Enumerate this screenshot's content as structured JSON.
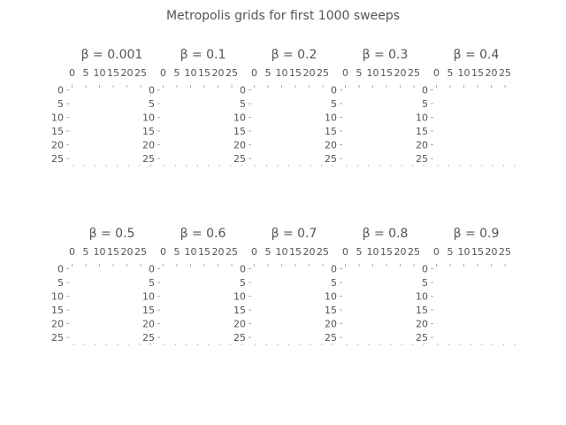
{
  "figure": {
    "suptitle": "Metropolis grids for first 1000 sweeps"
  },
  "chart_data": {
    "type": "heatmap",
    "grid_size": 30,
    "xticks": [
      "0",
      "5",
      "10",
      "15",
      "20",
      "25"
    ],
    "yticks": [
      "0",
      "5",
      "10",
      "15",
      "20",
      "25"
    ],
    "xtick_values": [
      0,
      5,
      10,
      15,
      20,
      25
    ],
    "ytick_values": [
      0,
      5,
      10,
      15,
      20,
      25
    ],
    "ink_color": "#555555",
    "panels": [
      {
        "title": "β = 0.001",
        "beta": 0.001
      },
      {
        "title": "β = 0.1",
        "beta": 0.1
      },
      {
        "title": "β = 0.2",
        "beta": 0.2
      },
      {
        "title": "β = 0.3",
        "beta": 0.3
      },
      {
        "title": "β = 0.4",
        "beta": 0.4
      },
      {
        "title": "β = 0.5",
        "beta": 0.5
      },
      {
        "title": "β = 0.6",
        "beta": 0.6
      },
      {
        "title": "β = 0.7",
        "beta": 0.7
      },
      {
        "title": "β = 0.8",
        "beta": 0.8
      },
      {
        "title": "β = 0.9",
        "beta": 0.9
      }
    ]
  }
}
